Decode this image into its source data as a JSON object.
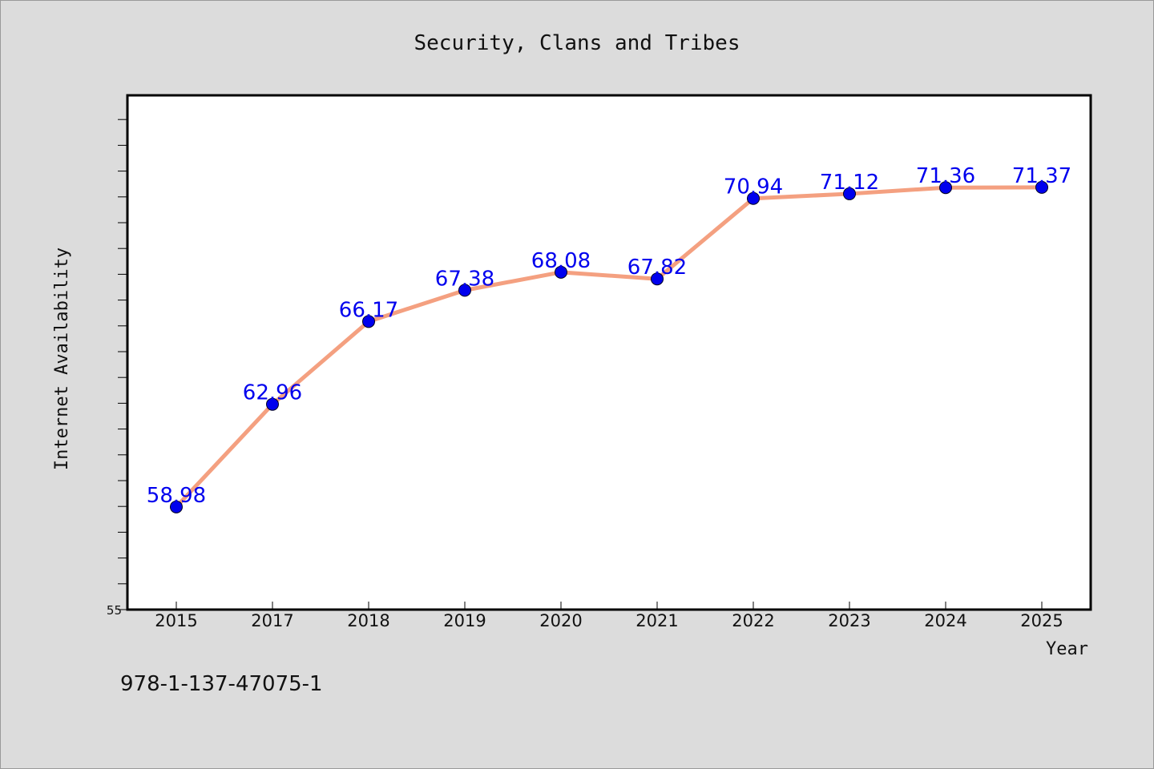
{
  "chart_data": {
    "type": "line",
    "title": "Security, Clans and Tribes",
    "xlabel": "Year",
    "ylabel": "Internet Availability",
    "categories": [
      "2015",
      "2017",
      "2018",
      "2019",
      "2020",
      "2021",
      "2022",
      "2023",
      "2024",
      "2025"
    ],
    "series": [
      {
        "values": [
          58.98,
          62.96,
          66.17,
          67.38,
          68.08,
          67.82,
          70.94,
          71.12,
          71.36,
          71.37
        ],
        "labels": [
          "58.98",
          "62.96",
          "66.17",
          "67.38",
          "68.08",
          "67.82",
          "70.94",
          "71.12",
          "71.36",
          "71.37"
        ]
      }
    ],
    "ylim": [
      55,
      75
    ],
    "yticks_labeled": [
      "55"
    ],
    "grid": false,
    "legend": "none",
    "colors": {
      "line": "#f4a080",
      "marker": "#0000ee",
      "data_label": "#0000ee",
      "background": "#dcdcdc",
      "plot_area": "#ffffff"
    }
  },
  "footer": {
    "isbn": "978-1-137-47075-1"
  }
}
